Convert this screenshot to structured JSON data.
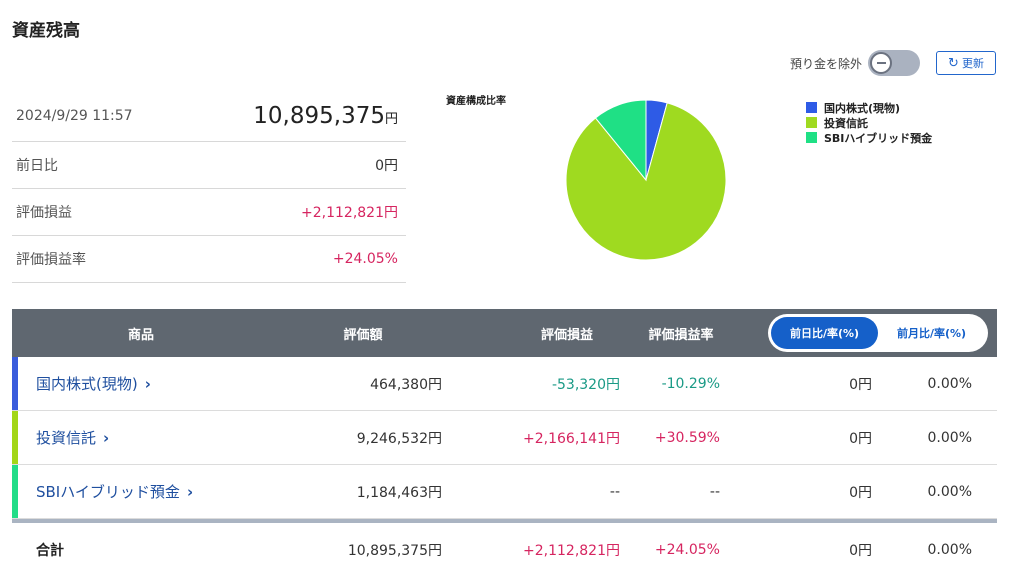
{
  "title": "資産残高",
  "controls": {
    "exclude_deposit_label": "預り金を除外",
    "refresh_label": "更新"
  },
  "summary": {
    "datetime": "2024/9/29 11:57",
    "total_value": "10,895,375",
    "total_unit": "円",
    "rows": [
      {
        "label": "前日比",
        "value": "0円"
      },
      {
        "label": "評価損益",
        "value": "+2,112,821円"
      },
      {
        "label": "評価損益率",
        "value": "+24.05%"
      }
    ]
  },
  "chart_data": {
    "type": "pie",
    "title": "資産構成比率",
    "categories": [
      "国内株式(現物)",
      "投資信託",
      "SBIハイブリッド預金"
    ],
    "values": [
      464380,
      9246532,
      1184463
    ],
    "colors": [
      "#2e5be6",
      "#9fda20",
      "#1fe085"
    ],
    "legend_position": "right"
  },
  "table": {
    "headers": {
      "product": "商品",
      "valuation": "評価額",
      "gain": "評価損益",
      "gain_rate": "評価損益率"
    },
    "toggle": {
      "day": "前日比/率(%)",
      "month": "前月比/率(%)"
    },
    "rows": [
      {
        "name": "国内株式(現物)",
        "valuation": "464,380円",
        "gain": "-53,320円",
        "gain_rate": "-10.29%",
        "diff": "0円",
        "diff_rate": "0.00%",
        "color": "#3a5cdc"
      },
      {
        "name": "投資信託",
        "valuation": "9,246,532円",
        "gain": "+2,166,141円",
        "gain_rate": "+30.59%",
        "diff": "0円",
        "diff_rate": "0.00%",
        "color": "#a3d617"
      },
      {
        "name": "SBIハイブリッド預金",
        "valuation": "1,184,463円",
        "gain": "--",
        "gain_rate": "--",
        "diff": "0円",
        "diff_rate": "0.00%",
        "color": "#22dd88"
      }
    ],
    "total": {
      "label": "合計",
      "valuation": "10,895,375円",
      "gain": "+2,112,821円",
      "gain_rate": "+24.05%",
      "diff": "0円",
      "diff_rate": "0.00%"
    }
  }
}
